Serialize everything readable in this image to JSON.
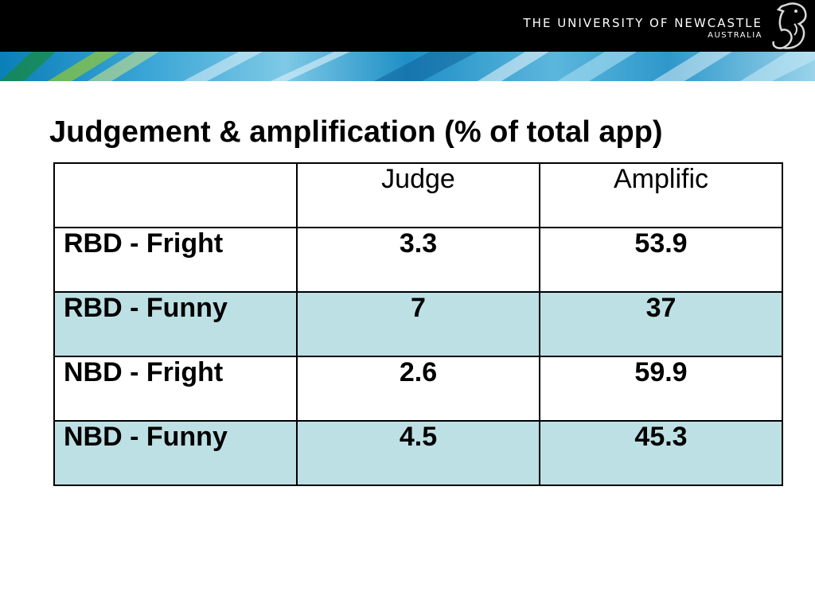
{
  "header": {
    "logo_line1": "THE UNIVERSITY OF NEWCASTLE",
    "logo_line2": "AUSTRALIA",
    "logo_icon": "seahorse-icon"
  },
  "slide": {
    "title": "Judgement & amplification (% of total app)"
  },
  "table": {
    "columns": [
      "",
      "Judge",
      "Amplific"
    ],
    "rows": [
      {
        "label": "RBD - Fright",
        "judge": "3.3",
        "amplific": "53.9"
      },
      {
        "label": "RBD - Funny",
        "judge": "7",
        "amplific": "37"
      },
      {
        "label": "NBD - Fright",
        "judge": "2.6",
        "amplific": "59.9"
      },
      {
        "label": "NBD - Funny",
        "judge": "4.5",
        "amplific": "45.3"
      }
    ],
    "shaded_row_color": "#bde0e4"
  }
}
